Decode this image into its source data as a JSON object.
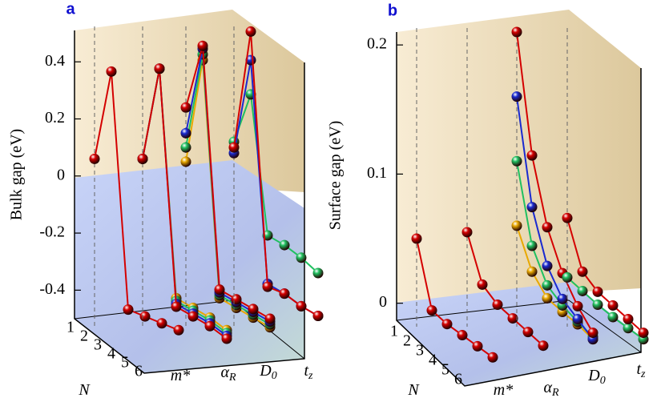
{
  "chart_data": [
    {
      "type": "line3d",
      "panel_label": "a",
      "ylabel": "Bulk gap (eV)",
      "ylim": [
        -0.5,
        0.51
      ],
      "yticks": [
        0.4,
        0.2,
        0,
        -0.2,
        -0.4
      ],
      "depth_ticks": [
        1,
        2,
        3,
        4,
        5,
        6
      ],
      "groups": [
        {
          "label": "N",
          "series": [
            {
              "color": "#d40000",
              "values": [
                0.06,
                0.38,
                -0.44,
                -0.45,
                -0.46,
                -0.47
              ]
            }
          ]
        },
        {
          "label": "m*",
          "series": [
            {
              "color": "#e8a800",
              "values": [
                0.06,
                0.39,
                -0.4,
                -0.42,
                -0.44,
                -0.47
              ]
            },
            {
              "color": "#20c060",
              "values": [
                0.06,
                0.39,
                -0.41,
                -0.43,
                -0.45,
                -0.48
              ]
            },
            {
              "color": "#1a2ad0",
              "values": [
                0.06,
                0.39,
                -0.42,
                -0.44,
                -0.46,
                -0.49
              ]
            },
            {
              "color": "#d40000",
              "values": [
                0.06,
                0.39,
                -0.43,
                -0.45,
                -0.47,
                -0.5
              ]
            }
          ]
        },
        {
          "label": "α",
          "sub": "R",
          "series": [
            {
              "color": "#e8a800",
              "values": [
                0.05,
                0.42,
                -0.4,
                -0.42,
                -0.44,
                -0.46
              ]
            },
            {
              "color": "#20c060",
              "values": [
                0.1,
                0.44,
                -0.39,
                -0.41,
                -0.43,
                -0.45
              ]
            },
            {
              "color": "#1a2ad0",
              "values": [
                0.15,
                0.46,
                -0.38,
                -0.4,
                -0.42,
                -0.44
              ]
            },
            {
              "color": "#d40000",
              "values": [
                0.24,
                0.47,
                -0.37,
                -0.39,
                -0.41,
                -0.43
              ]
            }
          ]
        },
        {
          "label": "D",
          "sub": "0",
          "series": [
            {
              "color": "#20c060",
              "values": [
                0.12,
                0.3,
                -0.18,
                -0.2,
                -0.23,
                -0.27
              ]
            },
            {
              "color": "#1a2ad0",
              "values": [
                0.08,
                0.42,
                -0.35,
                -0.37,
                -0.4,
                -0.42
              ]
            },
            {
              "color": "#d40000",
              "values": [
                0.1,
                0.52,
                -0.36,
                -0.37,
                -0.4,
                -0.42
              ]
            }
          ]
        },
        {
          "label": "t",
          "sub": "z",
          "series": []
        }
      ]
    },
    {
      "type": "line3d",
      "panel_label": "b",
      "ylabel": "Surface gap (eV)",
      "ylim": [
        -0.012,
        0.21
      ],
      "yticks": [
        0.2,
        0.1,
        0
      ],
      "depth_ticks": [
        1,
        2,
        3,
        4,
        5,
        6
      ],
      "groups": [
        {
          "label": "N",
          "series": [
            {
              "color": "#d40000",
              "values": [
                0.05,
                0.0,
                -0.005,
                -0.008,
                -0.011,
                -0.014
              ]
            }
          ]
        },
        {
          "label": "m*",
          "series": [
            {
              "color": "#d40000",
              "values": [
                0.055,
                0.02,
                0.01,
                0.005,
                0.0,
                -0.005
              ]
            }
          ]
        },
        {
          "label": "α",
          "sub": "R",
          "series": [
            {
              "color": "#e8a800",
              "values": [
                0.06,
                0.03,
                0.015,
                0.01,
                0.006,
                0.0
              ]
            },
            {
              "color": "#20c060",
              "values": [
                0.11,
                0.05,
                0.025,
                0.015,
                0.008,
                0.002
              ]
            },
            {
              "color": "#1a2ad0",
              "values": [
                0.16,
                0.08,
                0.04,
                0.02,
                0.01,
                0.0
              ]
            },
            {
              "color": "#d40000",
              "values": [
                0.21,
                0.12,
                0.07,
                0.04,
                0.02,
                0.005
              ]
            }
          ]
        },
        {
          "label": "D",
          "sub": "0",
          "series": [
            {
              "color": "#20c060",
              "values": [
                0.02,
                0.015,
                0.01,
                0.006,
                0.003,
                0.0
              ]
            },
            {
              "color": "#d40000",
              "values": [
                0.066,
                0.03,
                0.02,
                0.015,
                0.01,
                0.005
              ]
            }
          ]
        },
        {
          "label": "t",
          "sub": "z",
          "series": []
        }
      ]
    }
  ]
}
